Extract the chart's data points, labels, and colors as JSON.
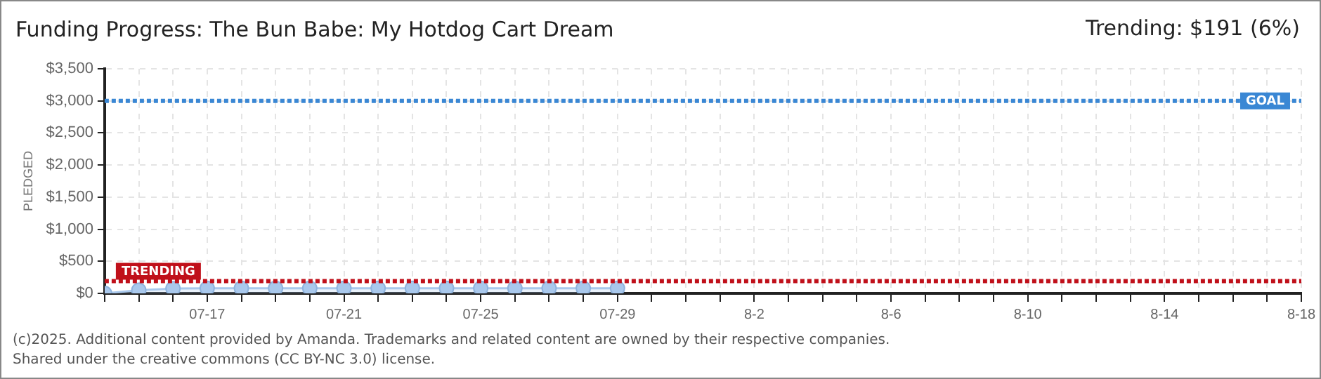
{
  "chart_data": {
    "type": "area",
    "title": "Funding Progress: The Bun Babe: My Hotdog Cart Dream",
    "ylabel": "PLEDGED",
    "annotations": [
      "Trending: $191 (6%)",
      "(c)2025. Additional content provided by Amanda. Trademarks and related content are owned by their respective companies.",
      "Shared under the creative commons (CC BY-NC 3.0) license."
    ],
    "x": [
      "--07-14",
      "--07-15",
      "--07-16",
      "--07-17",
      "--07-18",
      "--07-19",
      "--07-20",
      "--07-21",
      "--07-22",
      "--07-23",
      "--07-24",
      "--07-25",
      "--07-26",
      "--07-27",
      "--07-28",
      "--07-29"
    ],
    "series": [
      {
        "color": "#a9c8ec",
        "values": [
          0,
          50,
          75,
          80,
          80,
          80,
          80,
          80,
          80,
          80,
          80,
          80,
          80,
          80,
          80,
          80
        ]
      }
    ],
    "marker": "circle",
    "grid": true,
    "legend": false,
    "xlim": [
      "--07-14",
      "--08-18"
    ],
    "xticks": [
      {
        "value": "--07-14",
        "label": null
      },
      {
        "value": "--07-15",
        "label": null
      },
      {
        "value": "--07-16",
        "label": null
      },
      {
        "value": "--07-17",
        "label": "07-17"
      },
      {
        "value": "--07-18",
        "label": null
      },
      {
        "value": "--07-19",
        "label": null
      },
      {
        "value": "--07-20",
        "label": null
      },
      {
        "value": "--07-21",
        "label": "07-21"
      },
      {
        "value": "--07-22",
        "label": null
      },
      {
        "value": "--07-23",
        "label": null
      },
      {
        "value": "--07-24",
        "label": null
      },
      {
        "value": "--07-25",
        "label": "07-25"
      },
      {
        "value": "--07-26",
        "label": null
      },
      {
        "value": "--07-27",
        "label": null
      },
      {
        "value": "--07-28",
        "label": null
      },
      {
        "value": "--07-29",
        "label": "07-29"
      },
      {
        "value": "--07-30",
        "label": null
      },
      {
        "value": "--07-31",
        "label": null
      },
      {
        "value": "--08-01",
        "label": null
      },
      {
        "value": "--08-02",
        "label": "8-2"
      },
      {
        "value": "--08-03",
        "label": null
      },
      {
        "value": "--08-04",
        "label": null
      },
      {
        "value": "--08-05",
        "label": null
      },
      {
        "value": "--08-06",
        "label": "8-6"
      },
      {
        "value": "--08-07",
        "label": null
      },
      {
        "value": "--08-08",
        "label": null
      },
      {
        "value": "--08-09",
        "label": null
      },
      {
        "value": "--08-10",
        "label": "8-10"
      },
      {
        "value": "--08-11",
        "label": null
      },
      {
        "value": "--08-12",
        "label": null
      },
      {
        "value": "--08-13",
        "label": null
      },
      {
        "value": "--08-14",
        "label": "8-14"
      },
      {
        "value": "--08-15",
        "label": null
      },
      {
        "value": "--08-16",
        "label": null
      },
      {
        "value": "--08-17",
        "label": null
      },
      {
        "value": "--08-18",
        "label": "8-18"
      }
    ],
    "ylim": [
      0,
      3500
    ],
    "yticks": [
      {
        "value": 0,
        "label": "$0"
      },
      {
        "value": 500,
        "label": "$500"
      },
      {
        "value": 1000,
        "label": "$1,000"
      },
      {
        "value": 1500,
        "label": "$1,500"
      },
      {
        "value": 2000,
        "label": "$2,000"
      },
      {
        "value": 2500,
        "label": "$2,500"
      },
      {
        "value": 3000,
        "label": "$3,000"
      },
      {
        "value": 3500,
        "label": "$3,500"
      }
    ],
    "ref_lines": [
      {
        "axis": "y",
        "value": 3000,
        "label": "GOAL",
        "color": "#3a87d4",
        "line_style": "dotted"
      },
      {
        "axis": "y",
        "value": 191,
        "label": "TRENDING",
        "color": "#c0101a",
        "line_style": "dotted"
      }
    ]
  }
}
